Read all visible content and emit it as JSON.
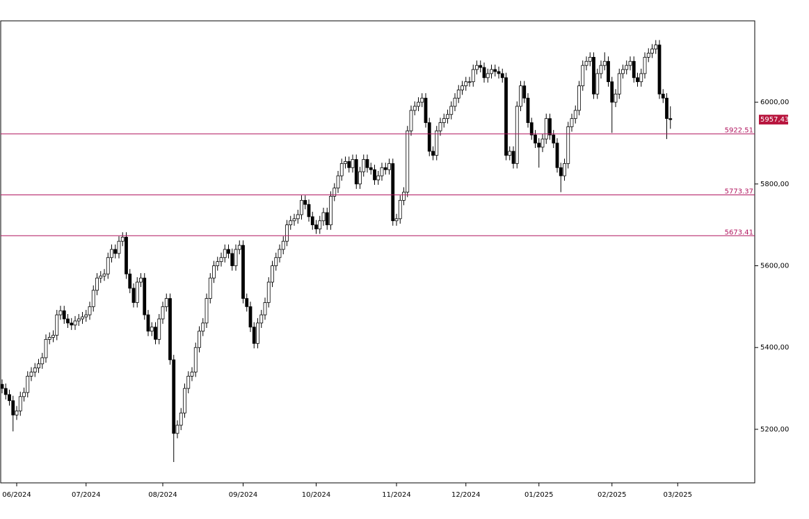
{
  "chart_data": {
    "type": "candlestick",
    "categories": [
      null,
      null,
      null,
      null,
      "06/2024",
      null,
      null,
      null,
      null,
      null,
      null,
      null,
      null,
      null,
      null,
      null,
      null,
      null,
      null,
      null,
      null,
      null,
      null,
      "07/2024",
      null,
      null,
      null,
      null,
      null,
      null,
      null,
      null,
      null,
      null,
      null,
      null,
      null,
      null,
      null,
      null,
      null,
      null,
      null,
      null,
      "08/2024",
      null,
      null,
      null,
      null,
      null,
      null,
      null,
      null,
      null,
      null,
      null,
      null,
      null,
      null,
      null,
      null,
      null,
      null,
      null,
      null,
      null,
      "09/2024",
      null,
      null,
      null,
      null,
      null,
      null,
      null,
      null,
      null,
      null,
      null,
      null,
      null,
      null,
      null,
      null,
      null,
      null,
      null,
      "10/2024",
      null,
      null,
      null,
      null,
      null,
      null,
      null,
      null,
      null,
      null,
      null,
      null,
      null,
      null,
      null,
      null,
      null,
      null,
      null,
      null,
      null,
      "11/2024",
      null,
      null,
      null,
      null,
      null,
      null,
      null,
      null,
      null,
      null,
      null,
      null,
      null,
      null,
      null,
      null,
      null,
      null,
      "12/2024",
      null,
      null,
      null,
      null,
      null,
      null,
      null,
      null,
      null,
      null,
      null,
      null,
      null,
      null,
      null,
      null,
      null,
      null,
      null,
      "01/2025",
      null,
      null,
      null,
      null,
      null,
      null,
      null,
      null,
      null,
      null,
      null,
      null,
      null,
      null,
      null,
      null,
      null,
      null,
      null,
      "02/2025",
      null,
      null,
      null,
      null,
      null,
      null,
      null,
      null,
      null,
      null,
      null,
      null,
      null,
      null,
      null,
      null,
      null,
      "03/2025",
      null
    ],
    "open": [
      5310,
      5300,
      5285,
      5270,
      5235,
      5245,
      5280,
      5290,
      5330,
      5340,
      5350,
      5360,
      5375,
      5420,
      5425,
      5430,
      5480,
      5490,
      5470,
      5460,
      5455,
      5465,
      5470,
      5475,
      5480,
      5500,
      5540,
      5570,
      5575,
      5580,
      5620,
      5640,
      5630,
      5660,
      5670,
      5580,
      5545,
      5510,
      5560,
      5570,
      5480,
      5440,
      5450,
      5420,
      5470,
      5500,
      5520,
      5370,
      5190,
      5210,
      5240,
      5300,
      5330,
      5340,
      5400,
      5440,
      5460,
      5520,
      5570,
      5600,
      5610,
      5620,
      5640,
      5630,
      5600,
      5640,
      5650,
      5520,
      5500,
      5450,
      5410,
      5460,
      5480,
      5510,
      5560,
      5600,
      5620,
      5640,
      5660,
      5700,
      5710,
      5715,
      5725,
      5760,
      5750,
      5720,
      5700,
      5690,
      5710,
      5730,
      5700,
      5770,
      5790,
      5820,
      5850,
      5855,
      5840,
      5860,
      5800,
      5830,
      5860,
      5840,
      5835,
      5810,
      5820,
      5840,
      5835,
      5850,
      5710,
      5715,
      5760,
      5780,
      5930,
      5980,
      5990,
      6000,
      6010,
      5950,
      5880,
      5870,
      5930,
      5950,
      5960,
      5970,
      5990,
      6010,
      6030,
      6040,
      6050,
      6050,
      6080,
      6090,
      6085,
      6060,
      6070,
      6080,
      6075,
      6070,
      6060,
      5870,
      5880,
      5850,
      5990,
      6040,
      6010,
      5950,
      5920,
      5900,
      5890,
      5910,
      5960,
      5920,
      5900,
      5840,
      5820,
      5850,
      5940,
      5960,
      5980,
      6040,
      6090,
      6100,
      6110,
      6020,
      6070,
      6090,
      6100,
      6050,
      6000,
      6020,
      6070,
      6080,
      6090,
      6100,
      6060,
      6050,
      6070,
      6110,
      6120,
      6130,
      6140,
      6020,
      6010,
      5960,
      null,
      null,
      null
    ],
    "high": [
      5322,
      5312,
      5297,
      5282,
      5257,
      5292,
      5302,
      5342,
      5352,
      5362,
      5372,
      5387,
      5432,
      5437,
      5442,
      5492,
      5502,
      5502,
      5482,
      5472,
      5477,
      5482,
      5487,
      5492,
      5512,
      5552,
      5582,
      5587,
      5592,
      5632,
      5652,
      5652,
      5672,
      5682,
      5682,
      5592,
      5557,
      5572,
      5582,
      5582,
      5492,
      5462,
      5462,
      5482,
      5512,
      5532,
      5532,
      5382,
      5222,
      5252,
      5312,
      5342,
      5352,
      5412,
      5452,
      5472,
      5532,
      5582,
      5612,
      5622,
      5632,
      5652,
      5652,
      5642,
      5652,
      5662,
      5662,
      5532,
      5512,
      5462,
      5472,
      5492,
      5522,
      5572,
      5612,
      5632,
      5652,
      5672,
      5712,
      5722,
      5727,
      5737,
      5772,
      5772,
      5762,
      5732,
      5712,
      5722,
      5742,
      5742,
      5782,
      5802,
      5832,
      5862,
      5867,
      5867,
      5872,
      5872,
      5842,
      5872,
      5872,
      5852,
      5847,
      5832,
      5852,
      5852,
      5862,
      5862,
      5727,
      5772,
      5792,
      5942,
      5992,
      6002,
      6012,
      6022,
      6022,
      5962,
      5892,
      5942,
      5962,
      5972,
      5982,
      6002,
      6022,
      6042,
      6052,
      6062,
      6062,
      6092,
      6102,
      6102,
      6097,
      6082,
      6092,
      6092,
      6087,
      6082,
      6072,
      5892,
      5892,
      6002,
      6052,
      6052,
      6022,
      5962,
      5932,
      5912,
      5922,
      5972,
      5972,
      5932,
      5912,
      5852,
      5862,
      5952,
      5972,
      5992,
      6052,
      6102,
      6112,
      6122,
      6122,
      6082,
      6102,
      6122,
      6112,
      6062,
      6032,
      6082,
      6092,
      6102,
      6112,
      6112,
      6072,
      6082,
      6122,
      6132,
      6142,
      6152,
      6152,
      6032,
      6022,
      5990,
      null,
      null,
      null
    ],
    "low": [
      5288,
      5273,
      5258,
      5195,
      5223,
      5233,
      5268,
      5278,
      5318,
      5328,
      5338,
      5348,
      5363,
      5408,
      5413,
      5418,
      5468,
      5458,
      5448,
      5443,
      5443,
      5453,
      5458,
      5463,
      5468,
      5488,
      5528,
      5558,
      5563,
      5568,
      5608,
      5618,
      5618,
      5648,
      5568,
      5533,
      5498,
      5498,
      5548,
      5468,
      5428,
      5428,
      5408,
      5408,
      5458,
      5488,
      5358,
      5120,
      5178,
      5198,
      5228,
      5288,
      5318,
      5328,
      5388,
      5428,
      5448,
      5508,
      5558,
      5588,
      5598,
      5608,
      5618,
      5588,
      5588,
      5628,
      5508,
      5488,
      5438,
      5398,
      5398,
      5448,
      5468,
      5498,
      5548,
      5588,
      5608,
      5628,
      5648,
      5688,
      5698,
      5703,
      5713,
      5738,
      5708,
      5688,
      5678,
      5678,
      5698,
      5688,
      5688,
      5758,
      5778,
      5808,
      5838,
      5828,
      5828,
      5788,
      5788,
      5818,
      5828,
      5823,
      5798,
      5798,
      5808,
      5823,
      5823,
      5698,
      5698,
      5703,
      5748,
      5768,
      5918,
      5968,
      5978,
      5988,
      5938,
      5868,
      5858,
      5858,
      5918,
      5938,
      5948,
      5958,
      5978,
      5998,
      6018,
      6028,
      6038,
      6038,
      6068,
      6073,
      6048,
      6048,
      6058,
      6063,
      6058,
      6048,
      5858,
      5858,
      5838,
      5838,
      5978,
      5998,
      5938,
      5908,
      5888,
      5840,
      5878,
      5898,
      5908,
      5888,
      5828,
      5780,
      5808,
      5838,
      5928,
      5948,
      5968,
      6028,
      6078,
      6088,
      6008,
      6008,
      6058,
      6078,
      6038,
      5925,
      5988,
      6008,
      6058,
      6068,
      6078,
      6048,
      6038,
      6038,
      6058,
      6098,
      6108,
      6118,
      6008,
      5998,
      5910,
      5935,
      null,
      null,
      null
    ],
    "close": [
      5300,
      5285,
      5270,
      5235,
      5245,
      5280,
      5290,
      5330,
      5340,
      5350,
      5360,
      5375,
      5420,
      5425,
      5430,
      5480,
      5490,
      5470,
      5460,
      5455,
      5465,
      5470,
      5475,
      5480,
      5500,
      5540,
      5570,
      5575,
      5580,
      5620,
      5640,
      5630,
      5660,
      5670,
      5580,
      5545,
      5510,
      5560,
      5570,
      5480,
      5440,
      5450,
      5420,
      5470,
      5500,
      5520,
      5370,
      5190,
      5210,
      5240,
      5300,
      5330,
      5340,
      5400,
      5440,
      5460,
      5520,
      5570,
      5600,
      5610,
      5620,
      5640,
      5630,
      5600,
      5640,
      5650,
      5520,
      5500,
      5450,
      5410,
      5460,
      5480,
      5510,
      5560,
      5600,
      5620,
      5640,
      5660,
      5700,
      5710,
      5715,
      5725,
      5760,
      5750,
      5720,
      5700,
      5690,
      5710,
      5730,
      5700,
      5770,
      5790,
      5820,
      5850,
      5855,
      5840,
      5860,
      5800,
      5830,
      5860,
      5840,
      5835,
      5810,
      5820,
      5840,
      5835,
      5850,
      5710,
      5715,
      5760,
      5780,
      5930,
      5980,
      5990,
      6000,
      6010,
      5950,
      5880,
      5870,
      5930,
      5950,
      5960,
      5970,
      5990,
      6010,
      6030,
      6040,
      6050,
      6050,
      6080,
      6090,
      6085,
      6060,
      6070,
      6080,
      6075,
      6070,
      6060,
      5870,
      5880,
      5850,
      5990,
      6040,
      6010,
      5950,
      5920,
      5900,
      5890,
      5910,
      5960,
      5920,
      5900,
      5840,
      5820,
      5850,
      5940,
      5960,
      5980,
      6040,
      6090,
      6100,
      6110,
      6020,
      6070,
      6090,
      6100,
      6050,
      6000,
      6020,
      6070,
      6080,
      6090,
      6100,
      6060,
      6050,
      6070,
      6110,
      6120,
      6130,
      6140,
      6020,
      6010,
      5960,
      5957.43,
      null,
      null,
      null
    ],
    "up_color": "#ffffff",
    "down_color": "#000000",
    "ylim": [
      5069,
      6199
    ],
    "yticks": [
      {
        "value": 5200,
        "label": "5200,00"
      },
      {
        "value": 5400,
        "label": "5400,00"
      },
      {
        "value": 5600,
        "label": "5600,00"
      },
      {
        "value": 5800,
        "label": "5800,00"
      },
      {
        "value": 6000,
        "label": "6000,00"
      }
    ],
    "levels": [
      5922.51,
      5773.37,
      5673.41
    ],
    "level_color": "#b0145e",
    "last_price": {
      "value": 5957.43,
      "label": "5957,43"
    },
    "last_price_color": "#b8163e"
  }
}
